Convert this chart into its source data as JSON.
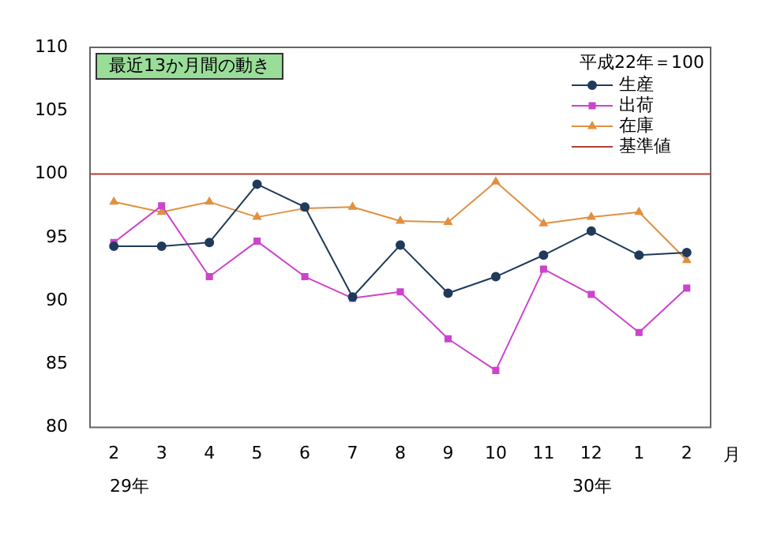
{
  "chart_data": {
    "type": "line",
    "title": "最近13か月間の動き",
    "legend_title": "平成22年＝100",
    "xlabel": "月",
    "categories": [
      "2",
      "3",
      "4",
      "5",
      "6",
      "7",
      "8",
      "9",
      "10",
      "11",
      "12",
      "1",
      "2"
    ],
    "series": [
      {
        "name": "生産",
        "color": "#1f3a5a",
        "marker": "circle",
        "values": [
          94.3,
          94.3,
          94.6,
          99.2,
          97.4,
          90.3,
          94.4,
          90.6,
          91.9,
          93.6,
          95.5,
          93.6,
          93.8
        ]
      },
      {
        "name": "出荷",
        "color": "#cc44cc",
        "marker": "square",
        "values": [
          94.6,
          97.5,
          91.9,
          94.7,
          91.9,
          90.2,
          90.7,
          87.0,
          84.5,
          92.5,
          90.5,
          87.5,
          91.0
        ]
      },
      {
        "name": "在庫",
        "color": "#e09040",
        "marker": "triangle",
        "values": [
          97.8,
          97.0,
          97.8,
          96.6,
          97.3,
          97.4,
          96.3,
          96.2,
          99.4,
          96.1,
          96.6,
          97.0,
          93.2
        ]
      }
    ],
    "ylim": [
      80,
      110
    ],
    "yticks": [
      80,
      85,
      90,
      95,
      100,
      105,
      110
    ],
    "grid": false,
    "legend": "top right",
    "ref_lines": [
      {
        "axis": "y",
        "value": 100,
        "label": "基準値",
        "color": "#b04030"
      }
    ],
    "annotations": [
      "29年",
      "30年"
    ]
  }
}
